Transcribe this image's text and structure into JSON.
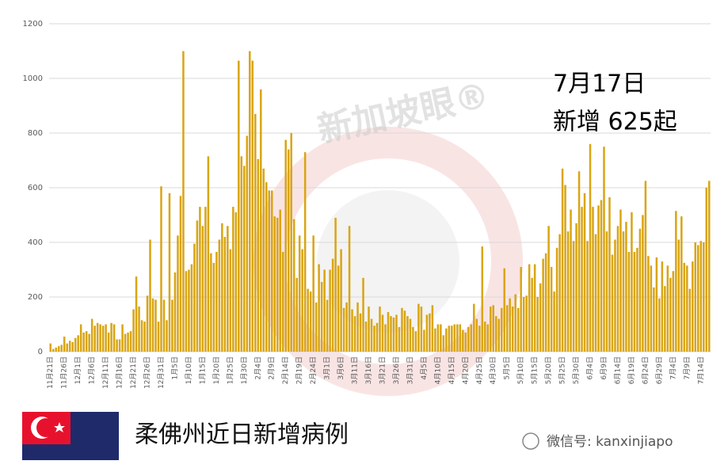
{
  "chart_data": {
    "type": "bar",
    "title": "柔佛州近日新增病例",
    "annotation": {
      "date": "7月17日",
      "text": "新增 625起"
    },
    "watermark": "新加坡眼®",
    "footer": "微信号: kanxinjiapo",
    "color": "#d9a514",
    "ylim": [
      0,
      1200
    ],
    "yticks": [
      0,
      200,
      400,
      600,
      800,
      1000,
      1200
    ],
    "grid": true,
    "categories": [
      "11月21日",
      null,
      null,
      null,
      null,
      "11月26日",
      null,
      null,
      null,
      null,
      "12月1日",
      null,
      null,
      null,
      null,
      "12月6日",
      null,
      null,
      null,
      null,
      "12月11日",
      null,
      null,
      null,
      null,
      "12月16日",
      null,
      null,
      null,
      null,
      "12月21日",
      null,
      null,
      null,
      null,
      "12月26日",
      null,
      null,
      null,
      null,
      "12月31日",
      null,
      null,
      null,
      null,
      "1月5日",
      null,
      null,
      null,
      null,
      "1月10日",
      null,
      null,
      null,
      null,
      "1月15日",
      null,
      null,
      null,
      null,
      "1月20日",
      null,
      null,
      null,
      null,
      "1月25日",
      null,
      null,
      null,
      null,
      "1月30日",
      null,
      null,
      null,
      null,
      "2月4日",
      null,
      null,
      null,
      null,
      "2月9日",
      null,
      null,
      null,
      null,
      "2月14日",
      null,
      null,
      null,
      null,
      "2月19日",
      null,
      null,
      null,
      null,
      "2月24日",
      null,
      null,
      null,
      null,
      "3月1日",
      null,
      null,
      null,
      null,
      "3月6日",
      null,
      null,
      null,
      null,
      "3月11日",
      null,
      null,
      null,
      null,
      "3月16日",
      null,
      null,
      null,
      null,
      "3月21日",
      null,
      null,
      null,
      null,
      "3月26日",
      null,
      null,
      null,
      null,
      "3月31日",
      null,
      null,
      null,
      null,
      "4月5日",
      null,
      null,
      null,
      null,
      "4月10日",
      null,
      null,
      null,
      null,
      "4月15日",
      null,
      null,
      null,
      null,
      "4月20日",
      null,
      null,
      null,
      null,
      "4月25日",
      null,
      null,
      null,
      null,
      "4月30日",
      null,
      null,
      null,
      null,
      "5月5日",
      null,
      null,
      null,
      null,
      "5月10日",
      null,
      null,
      null,
      null,
      "5月15日",
      null,
      null,
      null,
      null,
      "5月20日",
      null,
      null,
      null,
      null,
      "5月25日",
      null,
      null,
      null,
      null,
      "5月30日",
      null,
      null,
      null,
      null,
      "6月4日",
      null,
      null,
      null,
      null,
      "6月9日",
      null,
      null,
      null,
      null,
      "6月14日",
      null,
      null,
      null,
      null,
      "6月19日",
      null,
      null,
      null,
      null,
      "6月24日",
      null,
      null,
      null,
      null,
      "6月29日",
      null,
      null,
      null,
      null,
      "7月4日",
      null,
      null,
      null,
      null,
      "7月9日",
      null,
      null,
      null,
      null,
      "7月14日",
      null,
      null,
      null
    ],
    "values": [
      30,
      10,
      15,
      20,
      25,
      55,
      30,
      40,
      35,
      50,
      60,
      100,
      70,
      75,
      65,
      120,
      95,
      105,
      100,
      95,
      100,
      70,
      105,
      100,
      45,
      45,
      100,
      65,
      70,
      75,
      155,
      275,
      165,
      115,
      110,
      205,
      410,
      195,
      190,
      110,
      605,
      190,
      115,
      580,
      190,
      290,
      425,
      570,
      1100,
      295,
      300,
      320,
      395,
      480,
      530,
      460,
      530,
      715,
      360,
      325,
      365,
      410,
      470,
      420,
      460,
      375,
      530,
      510,
      1065,
      715,
      680,
      790,
      1100,
      1065,
      870,
      705,
      960,
      670,
      620,
      590,
      590,
      495,
      490,
      520,
      365,
      775,
      740,
      800,
      485,
      270,
      425,
      375,
      730,
      230,
      220,
      425,
      180,
      320,
      255,
      300,
      190,
      300,
      340,
      490,
      315,
      375,
      160,
      180,
      460,
      155,
      130,
      180,
      140,
      270,
      110,
      165,
      120,
      95,
      105,
      165,
      135,
      100,
      145,
      130,
      125,
      135,
      90,
      160,
      150,
      130,
      120,
      90,
      75,
      175,
      165,
      80,
      135,
      140,
      170,
      85,
      100,
      100,
      60,
      85,
      95,
      95,
      100,
      100,
      100,
      80,
      70,
      90,
      100,
      175,
      120,
      95,
      385,
      110,
      100,
      165,
      170,
      130,
      120,
      160,
      305,
      170,
      195,
      165,
      210,
      160,
      310,
      200,
      205,
      320,
      270,
      320,
      200,
      250,
      340,
      360,
      460,
      310,
      220,
      380,
      430,
      670,
      610,
      440,
      520,
      405,
      470,
      660,
      530,
      580,
      405,
      760,
      530,
      430,
      535,
      555,
      750,
      440,
      565,
      355,
      410,
      460,
      520,
      440,
      475,
      365,
      510,
      365,
      380,
      450,
      500,
      625,
      350,
      315,
      235,
      345,
      195,
      330,
      240,
      315,
      270,
      295,
      515,
      410,
      495,
      325,
      315,
      230,
      330,
      400,
      390,
      405,
      400,
      600,
      625
    ]
  }
}
